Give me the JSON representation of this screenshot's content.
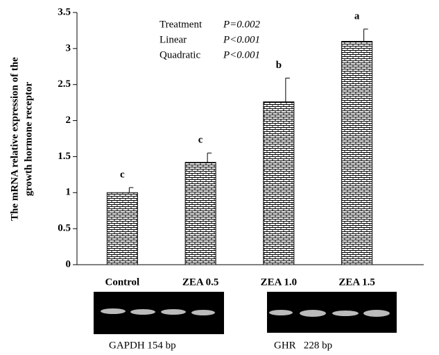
{
  "chart_data": {
    "type": "bar",
    "ylabel": [
      "The mRNA relative expression of  the",
      "growth hormone receptor"
    ],
    "categories": [
      "Control",
      "ZEA 0.5",
      "ZEA 1.0",
      "ZEA 1.5"
    ],
    "values": [
      1.0,
      1.42,
      2.26,
      3.1
    ],
    "errors": [
      0.07,
      0.13,
      0.33,
      0.17
    ],
    "letters": [
      "c",
      "c",
      "b",
      "a"
    ],
    "color": "#000000",
    "ylim": [
      0,
      3.5
    ],
    "yticks": [
      0,
      0.5,
      1,
      1.5,
      2,
      2.5,
      3,
      3.5
    ],
    "stats": [
      [
        "Treatment",
        "P=0.002"
      ],
      [
        "Linear",
        "P<0.001"
      ],
      [
        "Quadratic",
        "P<0.001"
      ]
    ],
    "gel_labels": [
      "GAPDH 154 bp",
      "GHR   228 bp"
    ]
  }
}
